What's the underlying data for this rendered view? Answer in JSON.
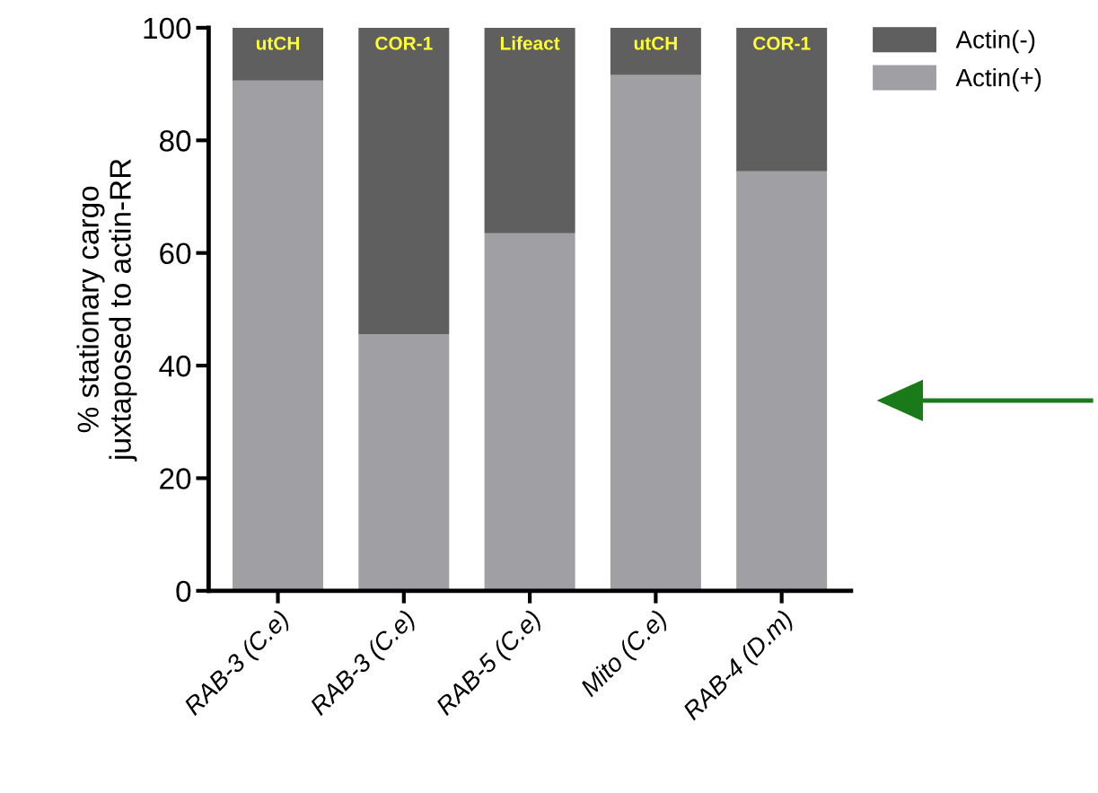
{
  "chart_data": {
    "type": "bar",
    "stacked": true,
    "ylabel": "% stationary cargo\njuxtaposed to actin-RR",
    "categories": [
      "RAB-3 (C.e)",
      "RAB-3 (C.e)",
      "RAB-5 (C.e)",
      "Mito (C.e)",
      "RAB-4 (D.m)"
    ],
    "series": [
      {
        "name": "Actin(+)",
        "color": "#a0a0a4",
        "values": [
          90.6,
          45.6,
          63.5,
          91.6,
          74.5
        ]
      },
      {
        "name": "Actin(-)",
        "color": "#5f5f5f",
        "values": [
          9.4,
          54.4,
          36.5,
          8.4,
          25.5
        ],
        "value_labels": [
          "utCH",
          "COR-1",
          "Lifeact",
          "utCH",
          "COR-1"
        ]
      }
    ],
    "ylim": [
      0,
      100
    ],
    "yticks": [
      0,
      20,
      40,
      60,
      80,
      100
    ],
    "grid": false,
    "legend": "top right"
  }
}
